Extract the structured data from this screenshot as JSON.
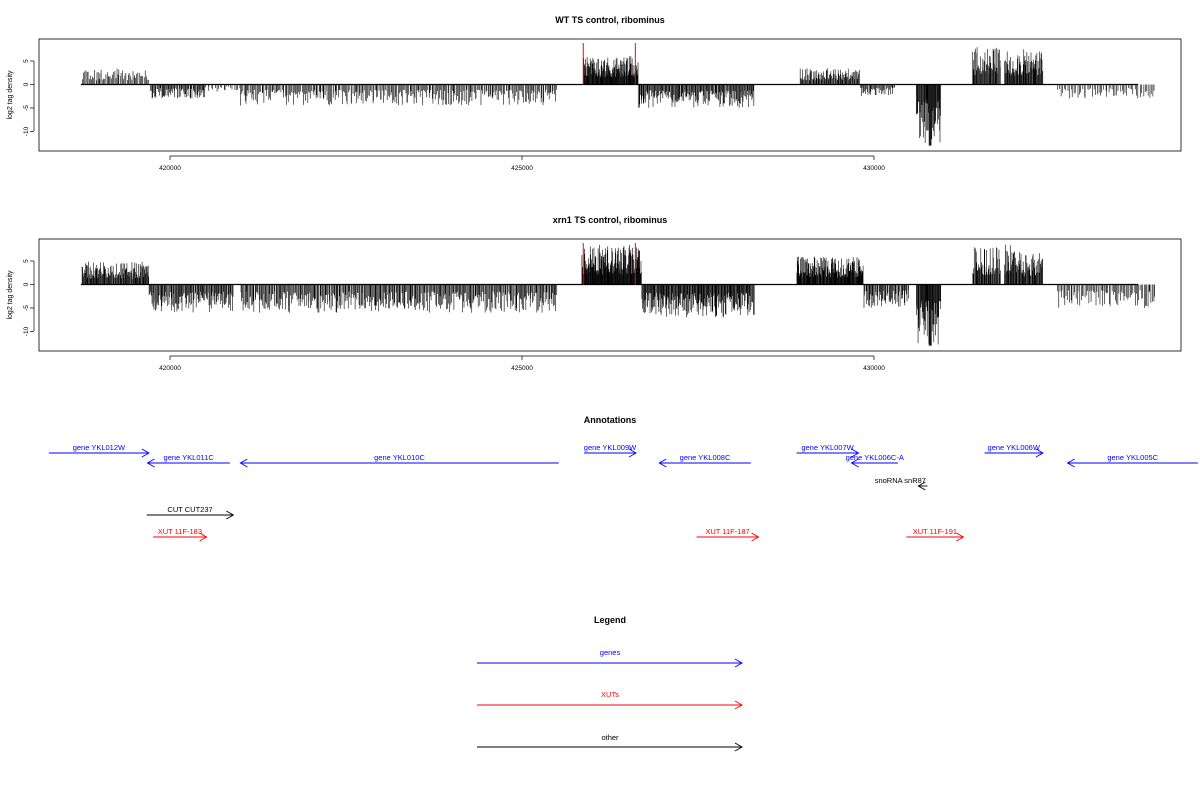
{
  "chart_data": [
    {
      "type": "bar",
      "title": "WT TS control, ribominus",
      "ylabel": "log2 tag density",
      "xlabel": "",
      "xlim": [
        418800,
        434200
      ],
      "ylim": [
        -14,
        10
      ],
      "xticks": [
        "420000",
        "425000",
        "430000"
      ],
      "yticks": [
        "5",
        "0",
        "-5",
        "-10"
      ],
      "colors": {
        "signal": "#000000",
        "marker": "#ff0000"
      },
      "markers_x": [
        425870,
        426610
      ],
      "segments": [
        {
          "x_start": 418750,
          "x_end": 419700,
          "strand": "+",
          "max": 3.5,
          "n": 60
        },
        {
          "x_start": 419720,
          "x_end": 420500,
          "strand": "-",
          "max": 3,
          "n": 70
        },
        {
          "x_start": 420500,
          "x_end": 421000,
          "strand": "-",
          "max": 1.5,
          "n": 20
        },
        {
          "x_start": 421000,
          "x_end": 425500,
          "strand": "-",
          "max": 4.5,
          "n": 300
        },
        {
          "x_start": 425870,
          "x_end": 426650,
          "strand": "+",
          "max": 6,
          "n": 140
        },
        {
          "x_start": 426650,
          "x_end": 428300,
          "strand": "-",
          "max": 5,
          "n": 170
        },
        {
          "x_start": 428950,
          "x_end": 429800,
          "strand": "+",
          "max": 3.5,
          "n": 90
        },
        {
          "x_start": 429800,
          "x_end": 430300,
          "strand": "-",
          "max": 2.5,
          "n": 40
        },
        {
          "x_start": 430600,
          "x_end": 430950,
          "strand": "-",
          "max": 13,
          "n": 50
        },
        {
          "x_start": 431400,
          "x_end": 431800,
          "strand": "+",
          "max": 8,
          "n": 50
        },
        {
          "x_start": 431850,
          "x_end": 432100,
          "strand": "+",
          "max": 7.5,
          "n": 35
        },
        {
          "x_start": 432100,
          "x_end": 432400,
          "strand": "+",
          "max": 7.5,
          "n": 40
        },
        {
          "x_start": 432600,
          "x_end": 434000,
          "strand": "-",
          "max": 3,
          "n": 60
        }
      ]
    },
    {
      "type": "bar",
      "title": "xrn1 TS control, ribominus",
      "ylabel": "log2 tag density",
      "xlabel": "",
      "xlim": [
        418800,
        434200
      ],
      "ylim": [
        -14,
        10
      ],
      "xticks": [
        "420000",
        "425000",
        "430000"
      ],
      "yticks": [
        "5",
        "0",
        "-5",
        "-10"
      ],
      "colors": {
        "signal": "#000000",
        "marker": "#ff0000"
      },
      "markers_x": [
        425870,
        426610
      ],
      "segments": [
        {
          "x_start": 418750,
          "x_end": 419700,
          "strand": "+",
          "max": 5,
          "n": 120
        },
        {
          "x_start": 419700,
          "x_end": 420900,
          "strand": "-",
          "max": 6,
          "n": 120
        },
        {
          "x_start": 421000,
          "x_end": 425500,
          "strand": "-",
          "max": 6,
          "n": 380
        },
        {
          "x_start": 425850,
          "x_end": 426700,
          "strand": "+",
          "max": 8.5,
          "n": 160
        },
        {
          "x_start": 426700,
          "x_end": 428300,
          "strand": "-",
          "max": 7,
          "n": 200
        },
        {
          "x_start": 428900,
          "x_end": 429850,
          "strand": "+",
          "max": 6,
          "n": 160
        },
        {
          "x_start": 429850,
          "x_end": 430500,
          "strand": "-",
          "max": 5,
          "n": 60
        },
        {
          "x_start": 430600,
          "x_end": 430950,
          "strand": "-",
          "max": 13,
          "n": 50
        },
        {
          "x_start": 431400,
          "x_end": 431800,
          "strand": "+",
          "max": 8,
          "n": 50
        },
        {
          "x_start": 431850,
          "x_end": 432100,
          "strand": "+",
          "max": 8.5,
          "n": 35
        },
        {
          "x_start": 432100,
          "x_end": 432400,
          "strand": "+",
          "max": 7,
          "n": 40
        },
        {
          "x_start": 432600,
          "x_end": 434000,
          "strand": "-",
          "max": 5,
          "n": 80
        }
      ]
    }
  ],
  "annotations": {
    "title": "Annotations",
    "features": [
      {
        "label": "gene YKL012W",
        "start": 418280,
        "end": 419700,
        "strand": "+",
        "category": "genes",
        "row": 0
      },
      {
        "label": "gene YKL011C",
        "start": 419680,
        "end": 420850,
        "strand": "-",
        "category": "genes",
        "row": 1
      },
      {
        "label": "gene YKL010C",
        "start": 421000,
        "end": 425520,
        "strand": "-",
        "category": "genes",
        "row": 1
      },
      {
        "label": "gene YKL009W",
        "start": 425880,
        "end": 426620,
        "strand": "+",
        "category": "genes",
        "row": 0
      },
      {
        "label": "gene YKL008C",
        "start": 426950,
        "end": 428250,
        "strand": "-",
        "category": "genes",
        "row": 1
      },
      {
        "label": "gene YKL007W",
        "start": 428900,
        "end": 429780,
        "strand": "+",
        "category": "genes",
        "row": 0
      },
      {
        "label": "gene YKL006C-A",
        "start": 429680,
        "end": 430340,
        "strand": "-",
        "category": "genes",
        "row": 1
      },
      {
        "label": "snoRNA snR87",
        "start": 430630,
        "end": 430760,
        "strand": "-",
        "category": "other",
        "row": 2
      },
      {
        "label": "gene YKL006W",
        "start": 431570,
        "end": 432400,
        "strand": "+",
        "category": "genes",
        "row": 0
      },
      {
        "label": "gene YKL005C",
        "start": 432750,
        "end": 434600,
        "strand": "-",
        "category": "genes",
        "row": 1
      },
      {
        "label": "CUT CUT237",
        "start": 419670,
        "end": 420900,
        "strand": "+",
        "category": "other",
        "row": 3
      },
      {
        "label": "XUT 11F-183",
        "start": 419760,
        "end": 420520,
        "strand": "+",
        "category": "XUTs",
        "row": 4
      },
      {
        "label": "XUT 11F-187",
        "start": 427480,
        "end": 428360,
        "strand": "+",
        "category": "XUTs",
        "row": 4
      },
      {
        "label": "XUT 11F-191",
        "start": 430460,
        "end": 431270,
        "strand": "+",
        "category": "XUTs",
        "row": 4
      }
    ]
  },
  "legend": {
    "title": "Legend",
    "items": [
      {
        "label": "genes",
        "color": "#0000ff"
      },
      {
        "label": "XUTs",
        "color": "#ff0000"
      },
      {
        "label": "other",
        "color": "#000000"
      }
    ]
  }
}
